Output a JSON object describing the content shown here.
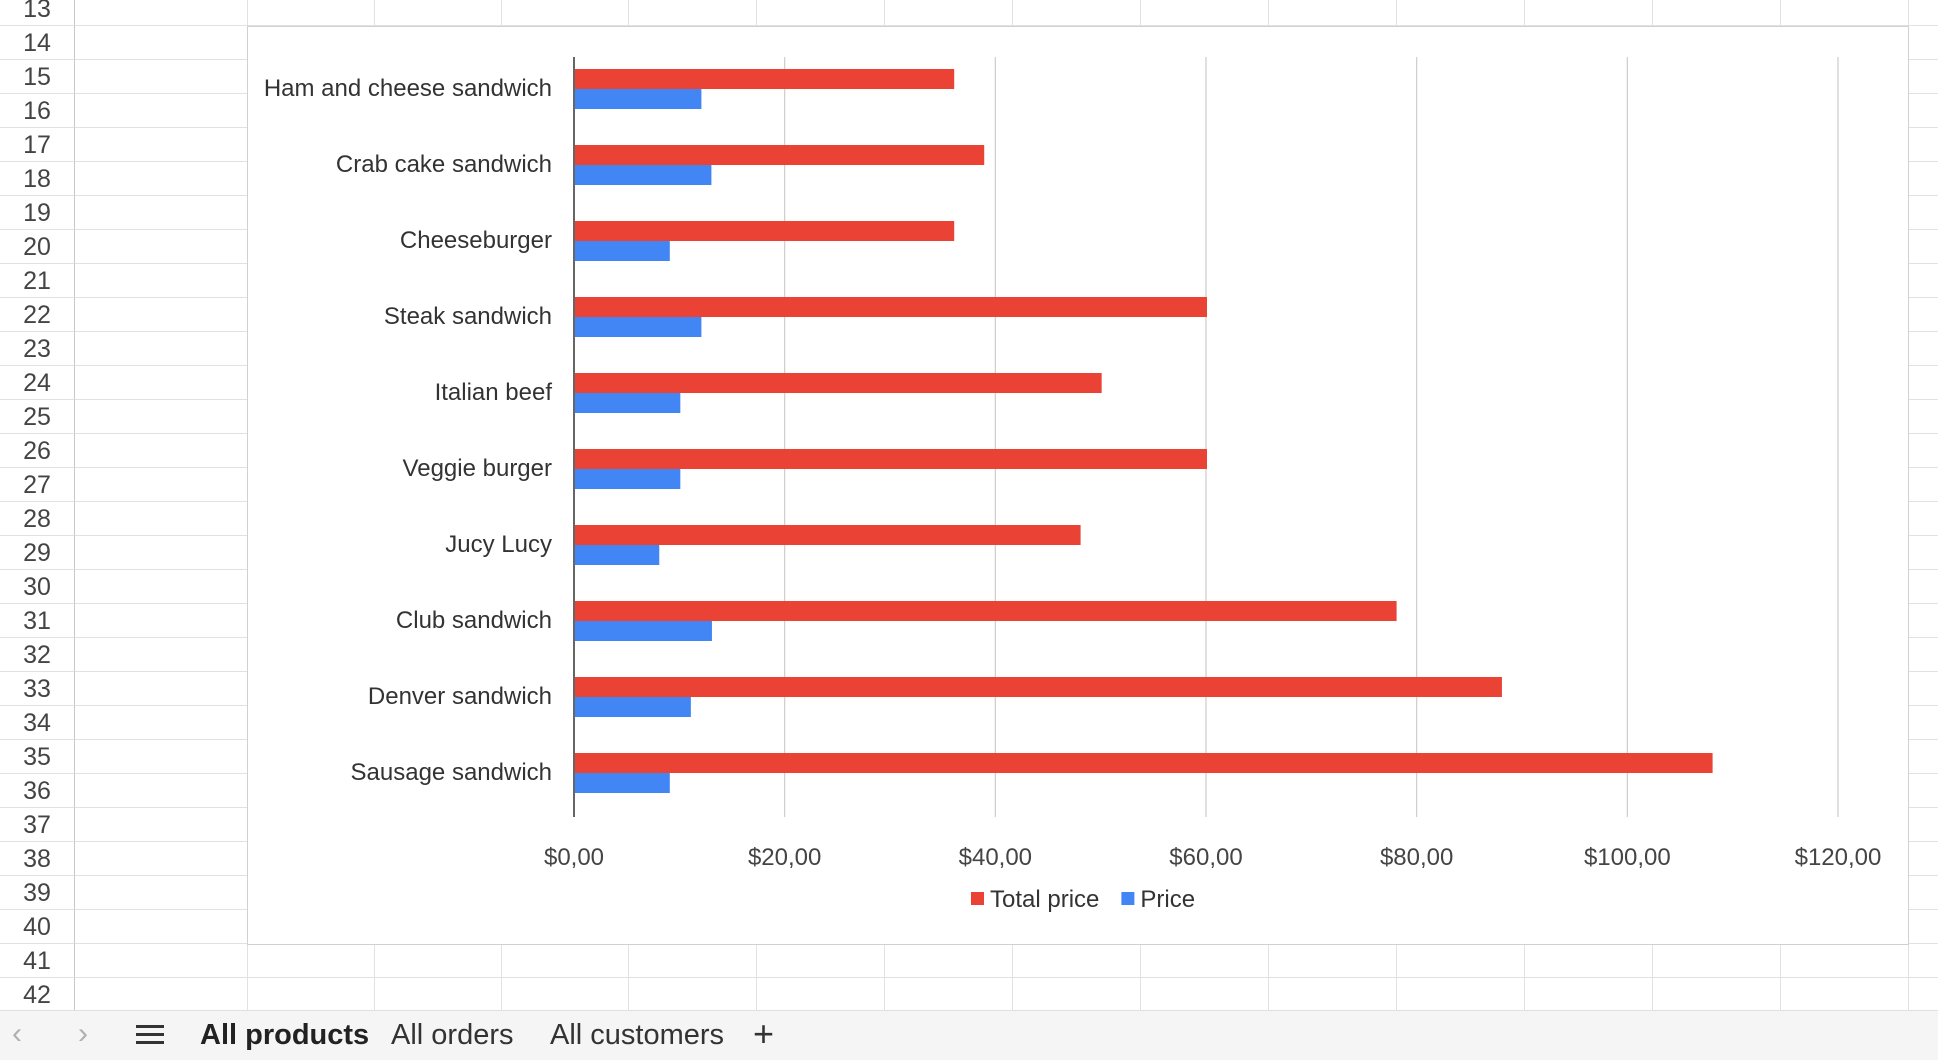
{
  "spreadsheet": {
    "rows": [
      "13",
      "14",
      "15",
      "16",
      "17",
      "18",
      "19",
      "20",
      "21",
      "22",
      "23",
      "24",
      "25",
      "26",
      "27",
      "28",
      "29",
      "30",
      "31",
      "32",
      "33",
      "34",
      "35",
      "36",
      "37",
      "38",
      "39",
      "40",
      "41",
      "42"
    ]
  },
  "sheet_tabs": {
    "items": [
      {
        "label": "All products",
        "active": true
      },
      {
        "label": "All orders",
        "active": false
      },
      {
        "label": "All customers",
        "active": false
      }
    ],
    "add_icon": "plus-icon",
    "menu_icon": "hamburger-menu-icon"
  },
  "chart_data": {
    "type": "bar",
    "orientation": "horizontal",
    "categories": [
      "Ham and cheese sandwich",
      "Crab cake sandwich",
      "Cheeseburger",
      "Steak sandwich",
      "Italian beef",
      "Veggie burger",
      "Jucy Lucy",
      "Club sandwich",
      "Denver sandwich",
      "Sausage sandwich"
    ],
    "series": [
      {
        "name": "Total price",
        "color": "#ea4335",
        "values": [
          36,
          38.85,
          36,
          60,
          50,
          60,
          48,
          78,
          88,
          108
        ]
      },
      {
        "name": "Price",
        "color": "#4285f4",
        "values": [
          12,
          12.95,
          9,
          12,
          10,
          10,
          8,
          13,
          11,
          9
        ]
      }
    ],
    "xlim": [
      0,
      120
    ],
    "xticks": [
      "$0,00",
      "$20,00",
      "$40,00",
      "$60,00",
      "$80,00",
      "$100,00",
      "$120,00"
    ],
    "grid": true,
    "legend": "bottom"
  }
}
